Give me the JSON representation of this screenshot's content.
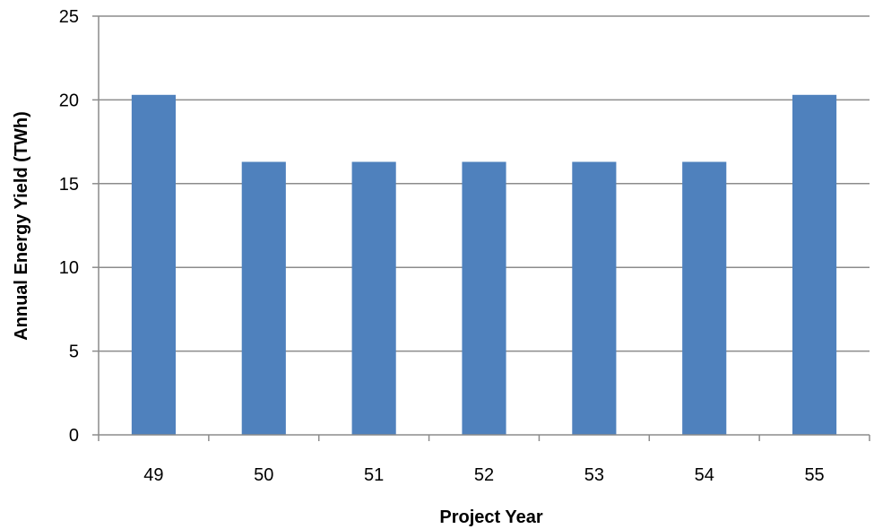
{
  "chart_data": {
    "type": "bar",
    "title": "",
    "xlabel": "Project Year",
    "ylabel": "Annual Energy  Yield (TWh)",
    "categories": [
      "49",
      "50",
      "51",
      "52",
      "53",
      "54",
      "55"
    ],
    "series": [
      {
        "values": [
          20.3,
          16.3,
          16.3,
          16.3,
          16.3,
          16.3,
          20.3
        ],
        "color": "#4f81bd"
      }
    ],
    "ylim": [
      0,
      25
    ],
    "yticks": [
      "0",
      "5",
      "10",
      "15",
      "20",
      "25"
    ],
    "grid": true,
    "legend": "none",
    "colors": {
      "bar": "#4f81bd",
      "grid": "#8c8c8c",
      "axis": "#8c8c8c"
    }
  }
}
